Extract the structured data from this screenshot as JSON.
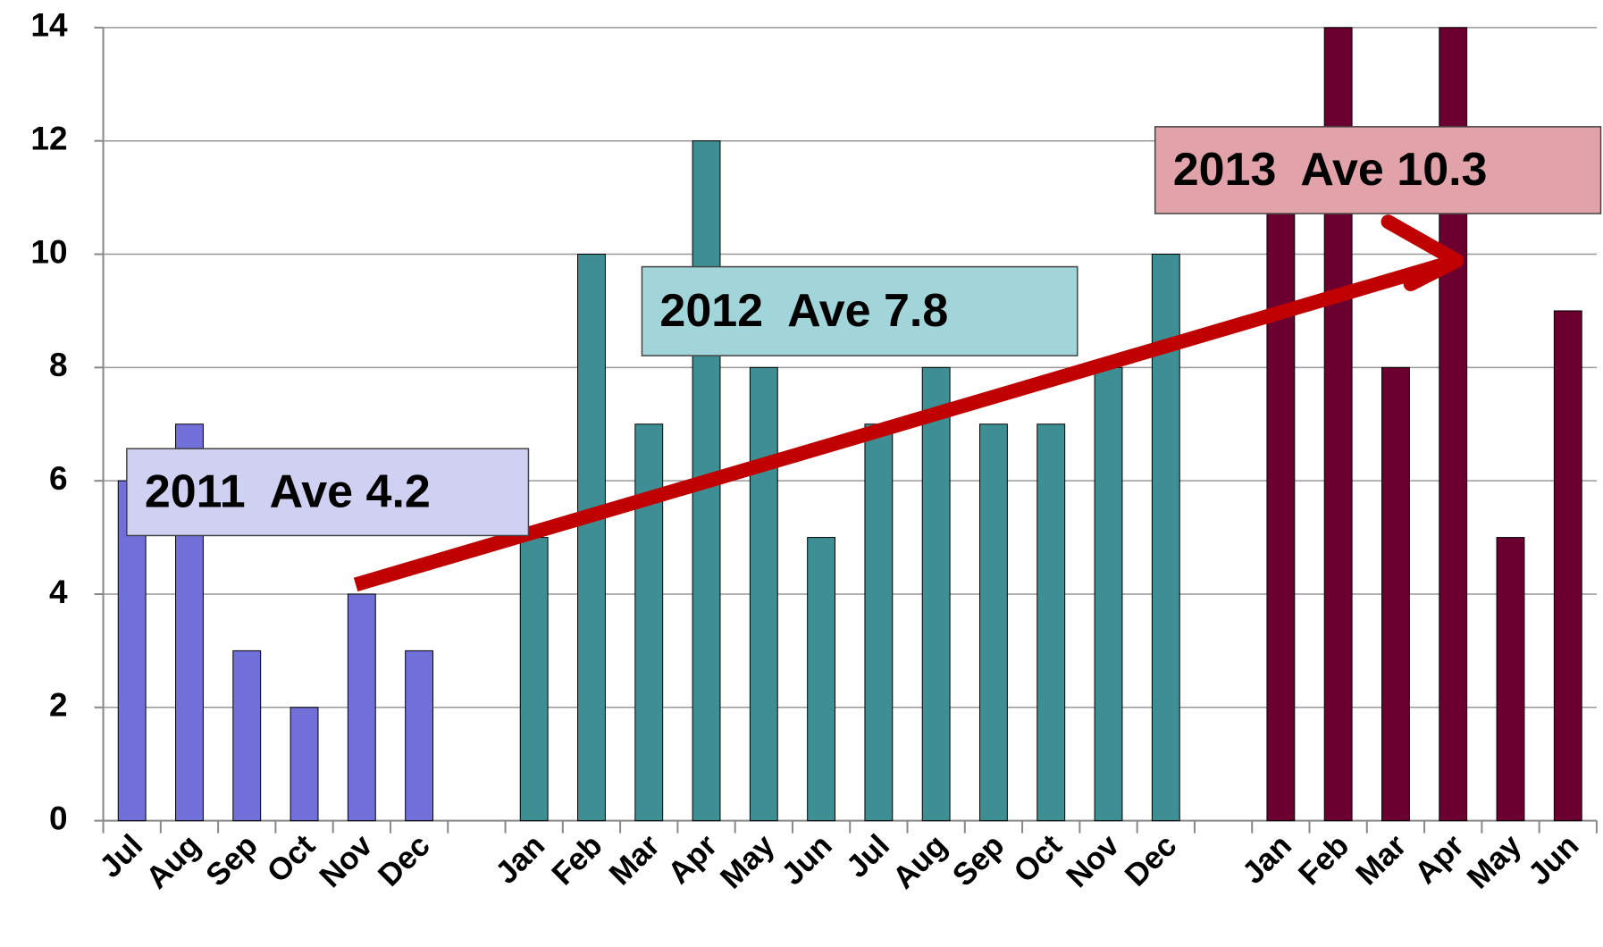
{
  "chart_data": {
    "type": "bar",
    "categories": [
      "Jul",
      "Aug",
      "Sep",
      "Oct",
      "Nov",
      "Dec",
      null,
      "Jan",
      "Feb",
      "Mar",
      "Apr",
      "May",
      "Jun",
      "Jul",
      "Aug",
      "Sep",
      "Oct",
      "Nov",
      "Dec",
      null,
      "Jan",
      "Feb",
      "Mar",
      "Apr",
      "May",
      "Jun"
    ],
    "series": [
      {
        "color": "#7070d8",
        "values": [
          6,
          7,
          3,
          2,
          4,
          3,
          null,
          null,
          null,
          null,
          null,
          null,
          null,
          null,
          null,
          null,
          null,
          null,
          null,
          null,
          null,
          null,
          null,
          null,
          null,
          null
        ]
      },
      {
        "color": "#3d8f94",
        "values": [
          null,
          null,
          null,
          null,
          null,
          null,
          null,
          5,
          10,
          7,
          12,
          8,
          5,
          7,
          8,
          7,
          7,
          8,
          10,
          null,
          null,
          null,
          null,
          null,
          null,
          null
        ]
      },
      {
        "color": "#6b0030",
        "values": [
          null,
          null,
          null,
          null,
          null,
          null,
          null,
          null,
          null,
          null,
          null,
          null,
          null,
          null,
          null,
          null,
          null,
          null,
          null,
          null,
          12,
          14,
          8,
          14,
          5,
          9
        ]
      }
    ],
    "ylim": [
      0,
      14
    ],
    "yticks": [
      0,
      2,
      4,
      6,
      8,
      10,
      12,
      14
    ],
    "grid": true,
    "annotations": [
      {
        "text": "2011  Ave 4.2",
        "color": "#d0d0f2"
      },
      {
        "text": "2012  Ave 7.8",
        "color": "#a2d5d9"
      },
      {
        "text": "2013  Ave 10.3",
        "color": "#e2a2aa"
      }
    ]
  }
}
